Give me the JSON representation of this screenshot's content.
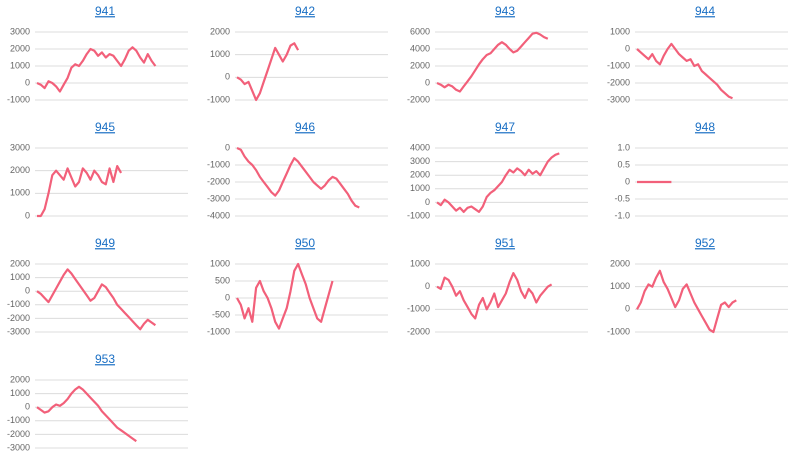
{
  "chart_data": [
    {
      "type": "line",
      "title": "941",
      "color": "#f2607a",
      "ylim": [
        -1000,
        3000
      ],
      "yticks": [
        -1000,
        0,
        1000,
        2000,
        3000
      ],
      "grid": true,
      "values": [
        0,
        -100,
        -300,
        100,
        0,
        -200,
        -500,
        -100,
        300,
        900,
        1100,
        1000,
        1300,
        1700,
        2000,
        1900,
        1600,
        1800,
        1500,
        1700,
        1600,
        1300,
        1000,
        1400,
        1900,
        2100,
        1900,
        1500,
        1200,
        1700,
        1300,
        1000
      ]
    },
    {
      "type": "line",
      "title": "942",
      "color": "#f2607a",
      "ylim": [
        -1000,
        2000
      ],
      "yticks": [
        -1000,
        0,
        1000,
        2000
      ],
      "grid": true,
      "values": [
        0,
        -100,
        -300,
        -200,
        -600,
        -1000,
        -700,
        -200,
        300,
        800,
        1300,
        1000,
        700,
        1000,
        1400,
        1500,
        1200
      ]
    },
    {
      "type": "line",
      "title": "943",
      "color": "#f2607a",
      "ylim": [
        -2000,
        6000
      ],
      "yticks": [
        -2000,
        0,
        2000,
        4000,
        6000
      ],
      "grid": true,
      "values": [
        0,
        -200,
        -500,
        -200,
        -400,
        -800,
        -1000,
        -400,
        200,
        800,
        1500,
        2200,
        2800,
        3300,
        3500,
        4000,
        4500,
        4800,
        4500,
        4000,
        3600,
        3800,
        4300,
        4800,
        5300,
        5800,
        5900,
        5700,
        5400,
        5200
      ]
    },
    {
      "type": "line",
      "title": "944",
      "color": "#f2607a",
      "ylim": [
        -3000,
        1000
      ],
      "yticks": [
        -3000,
        -2000,
        -1000,
        0,
        1000
      ],
      "grid": true,
      "values": [
        0,
        -200,
        -400,
        -600,
        -300,
        -700,
        -900,
        -400,
        0,
        300,
        0,
        -300,
        -500,
        -700,
        -600,
        -1000,
        -900,
        -1300,
        -1500,
        -1700,
        -1900,
        -2100,
        -2400,
        -2600,
        -2800,
        -2900
      ]
    },
    {
      "type": "line",
      "title": "945",
      "color": "#f2607a",
      "ylim": [
        0,
        3000
      ],
      "yticks": [
        0,
        1000,
        2000,
        3000
      ],
      "grid": true,
      "values": [
        0,
        0,
        300,
        1000,
        1800,
        2000,
        1800,
        1600,
        2100,
        1700,
        1300,
        1500,
        2100,
        1900,
        1600,
        2000,
        1800,
        1500,
        1400,
        2100,
        1500,
        2200,
        1900
      ]
    },
    {
      "type": "line",
      "title": "946",
      "color": "#f2607a",
      "ylim": [
        -4000,
        0
      ],
      "yticks": [
        -4000,
        -3000,
        -2000,
        -1000,
        0
      ],
      "grid": true,
      "values": [
        0,
        -100,
        -500,
        -800,
        -1000,
        -1300,
        -1700,
        -2000,
        -2300,
        -2600,
        -2800,
        -2500,
        -2000,
        -1500,
        -1000,
        -600,
        -800,
        -1100,
        -1400,
        -1700,
        -2000,
        -2200,
        -2400,
        -2200,
        -1900,
        -1700,
        -1800,
        -2100,
        -2400,
        -2700,
        -3100,
        -3400,
        -3500
      ]
    },
    {
      "type": "line",
      "title": "947",
      "color": "#f2607a",
      "ylim": [
        -1000,
        4000
      ],
      "yticks": [
        -1000,
        0,
        1000,
        2000,
        3000,
        4000
      ],
      "grid": true,
      "values": [
        0,
        -200,
        200,
        0,
        -300,
        -600,
        -400,
        -700,
        -400,
        -300,
        -500,
        -700,
        -300,
        400,
        700,
        900,
        1200,
        1500,
        2000,
        2400,
        2200,
        2500,
        2300,
        2000,
        2400,
        2100,
        2300,
        2000,
        2500,
        3000,
        3300,
        3500,
        3600
      ]
    },
    {
      "type": "line",
      "title": "948",
      "color": "#f2607a",
      "ylim": [
        -1,
        1
      ],
      "yticks": [
        {
          "value": -1,
          "label": "-1.0"
        },
        -0.5,
        0,
        0.5,
        {
          "value": 1,
          "label": "1.0"
        }
      ],
      "grid": true,
      "values": [
        0,
        0,
        0,
        0,
        0,
        0,
        0,
        0,
        0,
        0
      ]
    },
    {
      "type": "line",
      "title": "949",
      "color": "#f2607a",
      "ylim": [
        -3000,
        2000
      ],
      "yticks": [
        -3000,
        -2000,
        -1000,
        0,
        1000,
        2000
      ],
      "grid": true,
      "values": [
        0,
        -200,
        -500,
        -800,
        -300,
        200,
        700,
        1200,
        1600,
        1300,
        900,
        500,
        100,
        -300,
        -700,
        -500,
        0,
        500,
        300,
        -100,
        -500,
        -1000,
        -1300,
        -1600,
        -1900,
        -2200,
        -2500,
        -2800,
        -2400,
        -2100,
        -2300,
        -2500
      ]
    },
    {
      "type": "line",
      "title": "950",
      "color": "#f2607a",
      "ylim": [
        -1000,
        1000
      ],
      "yticks": [
        -1000,
        -500,
        0,
        500,
        1000
      ],
      "grid": true,
      "values": [
        0,
        -200,
        -600,
        -300,
        -700,
        300,
        500,
        200,
        0,
        -300,
        -700,
        -900,
        -600,
        -300,
        200,
        800,
        1000,
        700,
        400,
        0,
        -300,
        -600,
        -700,
        -300,
        100,
        500
      ]
    },
    {
      "type": "line",
      "title": "951",
      "color": "#f2607a",
      "ylim": [
        -2000,
        1000
      ],
      "yticks": [
        -2000,
        -1000,
        0,
        1000
      ],
      "grid": true,
      "values": [
        0,
        -100,
        400,
        300,
        0,
        -400,
        -200,
        -600,
        -900,
        -1200,
        -1400,
        -800,
        -500,
        -1000,
        -700,
        -300,
        -900,
        -600,
        -300,
        200,
        600,
        300,
        -200,
        -500,
        -100,
        -300,
        -700,
        -400,
        -200,
        0,
        100
      ]
    },
    {
      "type": "line",
      "title": "952",
      "color": "#f2607a",
      "ylim": [
        -1000,
        2000
      ],
      "yticks": [
        -1000,
        0,
        1000,
        2000
      ],
      "grid": true,
      "values": [
        0,
        300,
        800,
        1100,
        1000,
        1400,
        1700,
        1200,
        900,
        500,
        100,
        400,
        900,
        1100,
        700,
        300,
        0,
        -300,
        -600,
        -900,
        -1000,
        -400,
        200,
        300,
        100,
        300,
        400
      ]
    },
    {
      "type": "line",
      "title": "953",
      "color": "#f2607a",
      "ylim": [
        -3000,
        2000
      ],
      "yticks": [
        -3000,
        -2000,
        -1000,
        0,
        1000,
        2000
      ],
      "grid": true,
      "values": [
        0,
        -200,
        -400,
        -300,
        0,
        200,
        100,
        300,
        600,
        1000,
        1300,
        1500,
        1300,
        1000,
        700,
        400,
        100,
        -300,
        -600,
        -900,
        -1200,
        -1500,
        -1700,
        -1900,
        -2100,
        -2300,
        -2500
      ]
    }
  ]
}
